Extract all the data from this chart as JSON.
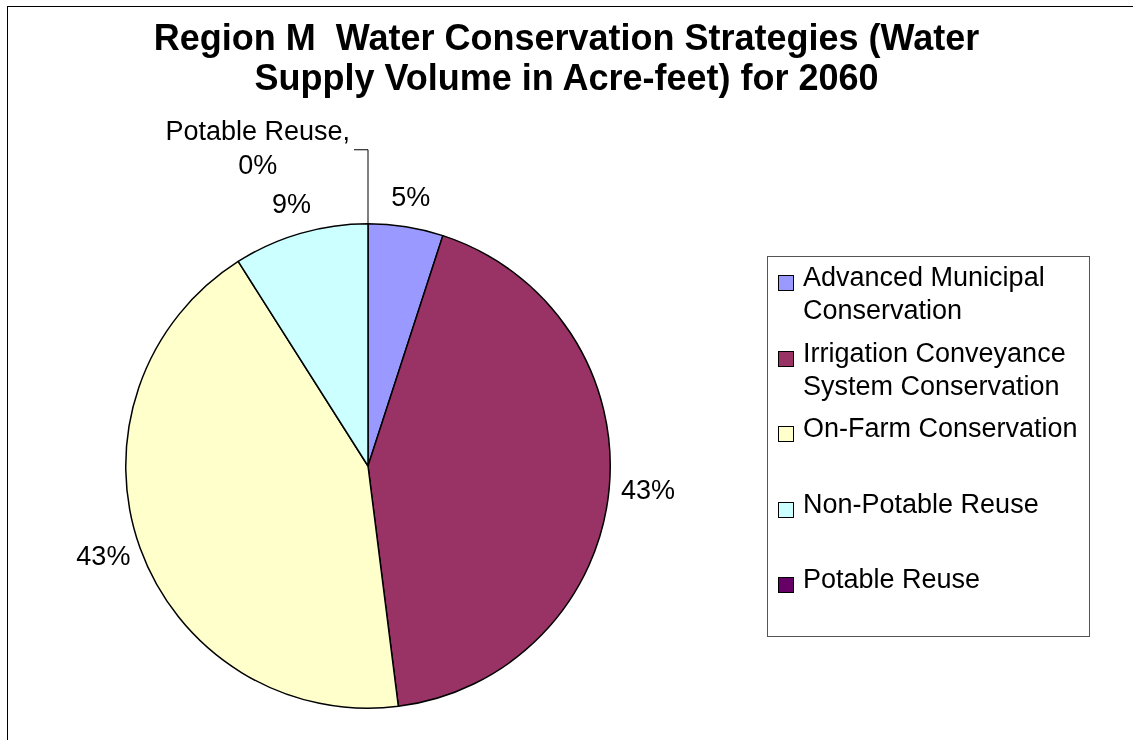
{
  "chart_data": {
    "type": "pie",
    "title": "Region M  Water Conservation Strategies (Water Supply Volume in Acre-feet) for 2060",
    "categories": [
      "Advanced Municipal Conservation",
      "Irrigation Conveyance System Conservation",
      "On-Farm Conservation",
      "Non-Potable Reuse",
      "Potable Reuse"
    ],
    "values": [
      5,
      43,
      43,
      9,
      0
    ],
    "colors": [
      "#9999ff",
      "#993366",
      "#ffffcc",
      "#ccffff",
      "#660066"
    ],
    "value_labels": [
      "5%",
      "43%",
      "43%",
      "9%",
      "Potable Reuse, 0%"
    ],
    "legend": "right"
  }
}
